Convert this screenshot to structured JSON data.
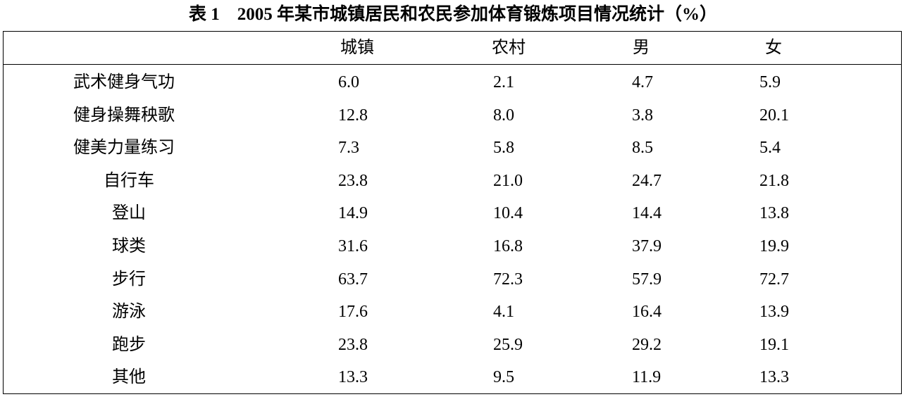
{
  "title": "表 1　2005 年某市城镇居民和农民参加体育锻炼项目情况统计（%）",
  "table": {
    "header": [
      "城镇",
      "农村",
      "男",
      "女"
    ],
    "rows": [
      [
        "武术健身气功",
        "6.0",
        "2.1",
        "4.7",
        "5.9"
      ],
      [
        "健身操舞秧歌",
        "12.8",
        "8.0",
        "3.8",
        "20.1"
      ],
      [
        "健美力量练习",
        "7.3",
        "5.8",
        "8.5",
        "5.4"
      ],
      [
        "自行车",
        "23.8",
        "21.0",
        "24.7",
        "21.8"
      ],
      [
        "登山",
        "14.9",
        "10.4",
        "14.4",
        "13.8"
      ],
      [
        "球类",
        "31.6",
        "16.8",
        "37.9",
        "19.9"
      ],
      [
        "步行",
        "63.7",
        "72.3",
        "57.9",
        "72.7"
      ],
      [
        "游泳",
        "17.6",
        "4.1",
        "16.4",
        "13.9"
      ],
      [
        "跑步",
        "23.8",
        "25.9",
        "29.2",
        "19.1"
      ],
      [
        "其他",
        "13.3",
        "9.5",
        "11.9",
        "13.3"
      ]
    ]
  }
}
